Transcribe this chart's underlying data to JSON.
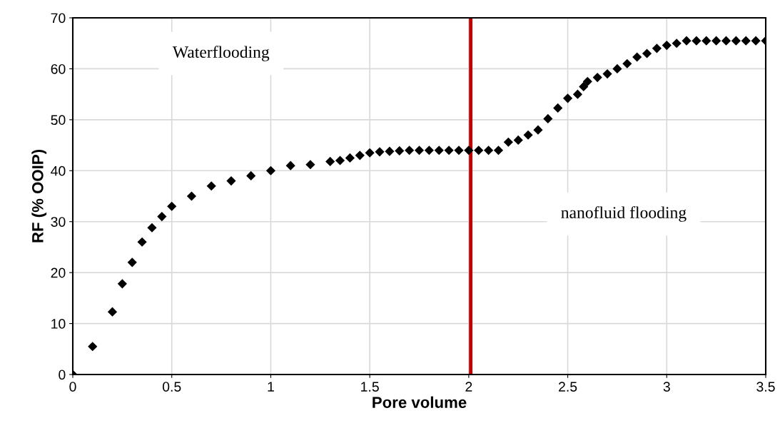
{
  "chart_data": {
    "type": "scatter",
    "xlabel": "Pore volume",
    "ylabel": "RF (% OOIP)",
    "x": [
      0,
      0.1,
      0.2,
      0.25,
      0.3,
      0.35,
      0.4,
      0.45,
      0.5,
      0.6,
      0.7,
      0.8,
      0.9,
      1.0,
      1.1,
      1.2,
      1.3,
      1.35,
      1.4,
      1.45,
      1.5,
      1.55,
      1.6,
      1.65,
      1.7,
      1.75,
      1.8,
      1.85,
      1.9,
      1.95,
      2.0,
      2.05,
      2.1,
      2.15,
      2.2,
      2.25,
      2.3,
      2.35,
      2.4,
      2.45,
      2.5,
      2.55,
      2.58,
      2.6,
      2.65,
      2.7,
      2.75,
      2.8,
      2.85,
      2.9,
      2.95,
      3.0,
      3.05,
      3.1,
      3.15,
      3.2,
      3.25,
      3.3,
      3.35,
      3.4,
      3.45,
      3.5
    ],
    "series": [
      {
        "color": "#000000",
        "values": [
          0,
          5.5,
          12.3,
          17.8,
          22,
          26,
          28.8,
          31,
          33,
          35,
          37,
          38,
          39,
          40,
          41,
          41.2,
          41.8,
          42,
          42.5,
          43,
          43.5,
          43.7,
          43.8,
          43.9,
          44,
          44,
          44,
          44,
          44,
          44,
          44,
          44,
          44,
          44,
          45.6,
          46,
          47,
          48,
          50.2,
          52.3,
          54.2,
          55,
          56.5,
          57.5,
          58.3,
          59,
          60,
          61,
          62.3,
          63,
          64,
          64.6,
          65,
          65.5,
          65.5,
          65.5,
          65.5,
          65.5,
          65.5,
          65.5,
          65.5,
          65.5
        ]
      }
    ],
    "marker": "diamond",
    "xlim": [
      0,
      3.5
    ],
    "xticks": [
      0,
      0.5,
      1,
      1.5,
      2,
      2.5,
      3,
      3.5
    ],
    "ylim": [
      0,
      70
    ],
    "yticks": [
      0,
      10,
      20,
      30,
      40,
      50,
      60,
      70
    ],
    "grid": true,
    "ref_lines": [
      {
        "axis": "x",
        "value": 2.01,
        "color": "#c00000"
      }
    ],
    "annotations": [
      "Waterflooding",
      "nanofluid flooding"
    ]
  }
}
